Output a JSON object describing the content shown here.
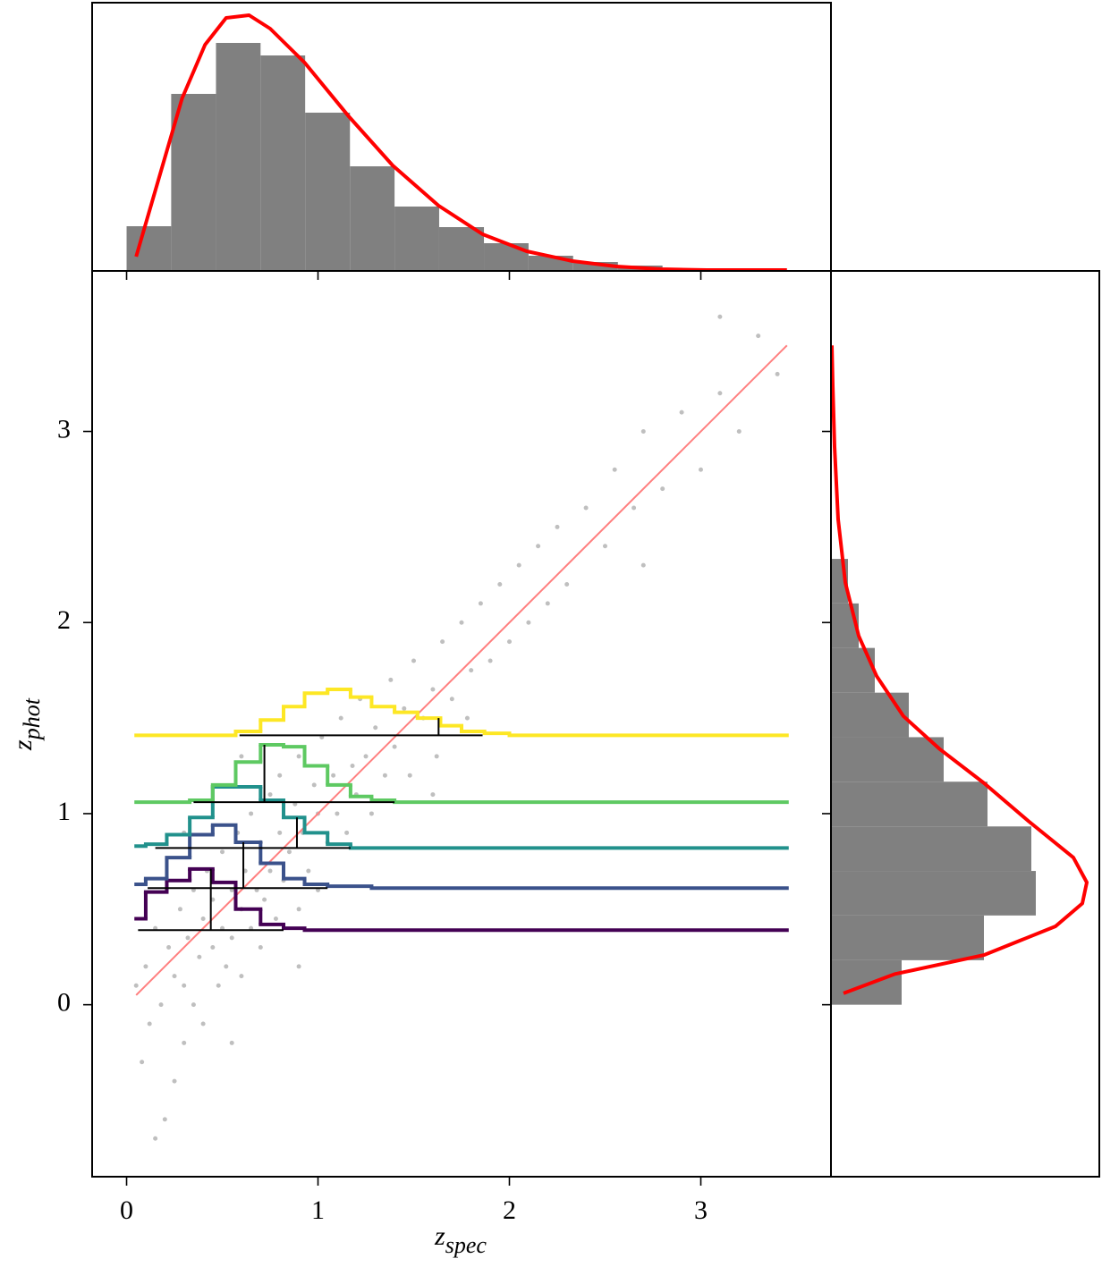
{
  "chart_data": [
    {
      "type": "scatter",
      "xlabel": {
        "symbol": "z",
        "subscript": "spec"
      },
      "ylabel": {
        "symbol": "z",
        "subscript": "phot"
      },
      "xlim": [
        -0.18,
        3.68
      ],
      "ylim": [
        -0.9,
        3.84
      ],
      "xticks": [
        0,
        1,
        2,
        3
      ],
      "yticks": [
        0,
        1,
        2,
        3
      ],
      "color": "#000000",
      "x": [
        0.05,
        0.08,
        0.1,
        0.12,
        0.15,
        0.18,
        0.2,
        0.22,
        0.25,
        0.28,
        0.3,
        0.3,
        0.32,
        0.35,
        0.35,
        0.38,
        0.4,
        0.4,
        0.42,
        0.45,
        0.45,
        0.48,
        0.5,
        0.5,
        0.52,
        0.55,
        0.55,
        0.58,
        0.6,
        0.6,
        0.62,
        0.65,
        0.65,
        0.68,
        0.7,
        0.7,
        0.72,
        0.75,
        0.75,
        0.78,
        0.8,
        0.8,
        0.82,
        0.85,
        0.88,
        0.9,
        0.9,
        0.92,
        0.95,
        0.98,
        1.0,
        1.0,
        1.02,
        1.05,
        1.08,
        1.1,
        1.12,
        1.15,
        1.18,
        1.2,
        1.22,
        1.25,
        1.28,
        1.3,
        1.35,
        1.38,
        1.4,
        1.45,
        1.48,
        1.5,
        1.55,
        1.6,
        1.62,
        1.65,
        1.7,
        1.75,
        1.78,
        1.8,
        1.85,
        1.9,
        1.95,
        2.0,
        2.05,
        2.1,
        2.15,
        2.2,
        2.25,
        2.3,
        2.4,
        2.5,
        2.55,
        2.65,
        2.7,
        2.8,
        2.9,
        3.0,
        3.1,
        3.2,
        3.3,
        3.4,
        3.1,
        2.7,
        0.15,
        0.25,
        0.55,
        0.9,
        1.6,
        0.3,
        0.6
      ],
      "values": [
        0.1,
        -0.3,
        0.2,
        -0.1,
        0.4,
        0.0,
        -0.6,
        0.3,
        0.15,
        0.5,
        -0.2,
        0.1,
        0.35,
        0.6,
        0.0,
        0.25,
        0.45,
        -0.1,
        0.7,
        0.3,
        0.55,
        0.1,
        0.4,
        0.8,
        0.2,
        0.6,
        0.35,
        0.9,
        0.5,
        0.15,
        0.7,
        0.4,
        1.0,
        0.6,
        0.85,
        0.3,
        0.55,
        1.1,
        0.7,
        0.45,
        0.9,
        1.2,
        0.65,
        0.8,
        1.05,
        0.5,
        1.3,
        0.9,
        0.7,
        1.15,
        1.0,
        0.6,
        1.4,
        0.85,
        1.2,
        1.0,
        1.5,
        0.9,
        1.25,
        1.1,
        1.6,
        1.3,
        1.0,
        1.45,
        1.2,
        1.7,
        1.35,
        1.55,
        1.2,
        1.8,
        1.5,
        1.65,
        1.3,
        1.9,
        1.6,
        2.0,
        1.5,
        1.75,
        2.1,
        1.8,
        2.2,
        1.9,
        2.3,
        2.0,
        2.4,
        2.1,
        2.5,
        2.2,
        2.6,
        2.4,
        2.8,
        2.6,
        3.0,
        2.7,
        3.1,
        2.8,
        3.2,
        3.0,
        3.5,
        3.3,
        3.6,
        2.3,
        -0.7,
        -0.4,
        -0.2,
        0.2,
        1.1,
        0.9,
        1.3
      ],
      "line": {
        "color": "#ff7f7f",
        "x": [
          0.05,
          3.45
        ],
        "values": [
          0.05,
          3.45
        ]
      },
      "steps": [
        {
          "color": "#440154",
          "baseline": 0.39,
          "median": 0.44,
          "range": [
            0.06,
            0.82
          ],
          "edges": [
            0.05,
            0.1,
            0.21,
            0.33,
            0.45,
            0.57,
            0.7,
            0.82,
            0.93,
            3.45
          ],
          "levels": [
            0.45,
            0.59,
            0.65,
            0.71,
            0.64,
            0.5,
            0.42,
            0.4,
            0.39
          ]
        },
        {
          "color": "#3b528b",
          "baseline": 0.61,
          "median": 0.61,
          "range": [
            0.11,
            1.05
          ],
          "edges": [
            0.05,
            0.1,
            0.21,
            0.33,
            0.45,
            0.57,
            0.7,
            0.82,
            0.93,
            1.05,
            1.28,
            3.45
          ],
          "levels": [
            0.63,
            0.66,
            0.77,
            0.89,
            0.94,
            0.85,
            0.74,
            0.66,
            0.63,
            0.62,
            0.61
          ]
        },
        {
          "color": "#21918c",
          "baseline": 0.82,
          "median": 0.89,
          "range": [
            0.15,
            1.17
          ],
          "edges": [
            0.05,
            0.1,
            0.21,
            0.33,
            0.45,
            0.57,
            0.7,
            0.82,
            0.93,
            1.05,
            1.17,
            3.45
          ],
          "levels": [
            0.83,
            0.84,
            0.89,
            0.98,
            1.14,
            1.14,
            1.07,
            0.98,
            0.9,
            0.84,
            0.82
          ]
        },
        {
          "color": "#5ec962",
          "baseline": 1.06,
          "median": 0.72,
          "range": [
            0.35,
            1.4
          ],
          "edges": [
            0.05,
            0.33,
            0.45,
            0.57,
            0.7,
            0.82,
            0.93,
            1.05,
            1.17,
            1.28,
            1.4,
            3.45
          ],
          "levels": [
            1.06,
            1.07,
            1.15,
            1.27,
            1.36,
            1.35,
            1.25,
            1.15,
            1.09,
            1.07,
            1.06
          ]
        },
        {
          "color": "#fde725",
          "baseline": 1.41,
          "median": 1.63,
          "range": [
            0.59,
            1.86
          ],
          "edges": [
            0.05,
            0.57,
            0.7,
            0.82,
            0.93,
            1.05,
            1.17,
            1.28,
            1.4,
            1.52,
            1.64,
            1.75,
            1.87,
            2.0,
            3.45
          ],
          "levels": [
            1.41,
            1.43,
            1.49,
            1.56,
            1.63,
            1.65,
            1.61,
            1.56,
            1.53,
            1.5,
            1.46,
            1.43,
            1.42,
            1.41
          ]
        }
      ]
    },
    {
      "type": "histogram",
      "orientation": "vertical",
      "color": "#808080",
      "xlim": [
        -0.18,
        3.68
      ],
      "ylim": [
        0,
        300
      ],
      "bins": [
        0,
        0.233,
        0.467,
        0.7,
        0.933,
        1.167,
        1.4,
        1.633,
        1.867,
        2.1,
        2.333,
        2.567,
        2.8,
        3.033,
        3.267,
        3.5
      ],
      "values": [
        50,
        198,
        255,
        241,
        177,
        117,
        72,
        49,
        31,
        17,
        10,
        6,
        3,
        2,
        1
      ],
      "curve": {
        "color": "#ff0000",
        "x": [
          0.05,
          0.29,
          0.41,
          0.52,
          0.64,
          0.75,
          0.93,
          1.16,
          1.39,
          1.63,
          1.86,
          2.09,
          2.33,
          2.56,
          2.79,
          3.03,
          3.45
        ],
        "values": [
          16,
          193,
          253,
          283,
          286,
          271,
          233,
          173,
          118,
          73,
          41,
          22,
          11,
          5,
          2,
          1,
          1
        ]
      }
    },
    {
      "type": "histogram",
      "orientation": "horizontal",
      "color": "#808080",
      "xlim": [
        0,
        300
      ],
      "ylim": [
        -0.9,
        3.84
      ],
      "bins": [
        0,
        0.233,
        0.467,
        0.7,
        0.933,
        1.167,
        1.4,
        1.633,
        1.867,
        2.1,
        2.333
      ],
      "values": [
        79,
        171,
        229,
        224,
        175,
        126,
        87,
        49,
        31,
        19
      ],
      "curve": {
        "color": "#ff0000",
        "x": [
          0.06,
          0.16,
          0.26,
          0.41,
          0.53,
          0.64,
          0.77,
          0.96,
          1.16,
          1.34,
          1.51,
          1.72,
          1.93,
          2.21,
          2.54,
          2.92,
          3.24,
          3.45
        ],
        "values": [
          14,
          71,
          171,
          251,
          281,
          286,
          271,
          221,
          171,
          121,
          81,
          51,
          31,
          16,
          8,
          4,
          2,
          1
        ]
      }
    }
  ]
}
